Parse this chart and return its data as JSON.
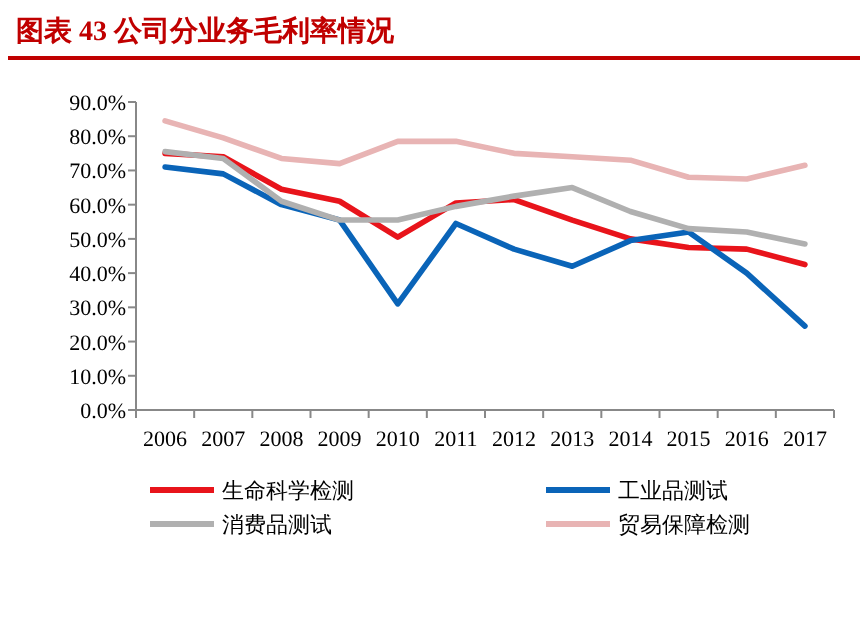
{
  "chart_data": {
    "type": "line",
    "title": "图表 43   公司分业务毛利率情况",
    "categories": [
      "2006",
      "2007",
      "2008",
      "2009",
      "2010",
      "2011",
      "2012",
      "2013",
      "2014",
      "2015",
      "2016",
      "2017"
    ],
    "series": [
      {
        "name": "生命科学检测",
        "color": "#e8141b",
        "values": [
          75,
          74,
          64.5,
          61,
          50.5,
          60.5,
          61.5,
          55.5,
          50,
          47.5,
          47,
          42.5
        ]
      },
      {
        "name": "工业品测试",
        "color": "#0a64b8",
        "values": [
          71,
          69,
          60,
          55.5,
          31,
          54.5,
          47,
          42,
          49.5,
          52,
          40,
          24.5
        ]
      },
      {
        "name": "消费品测试",
        "color": "#b0b0b0",
        "values": [
          75.5,
          73.5,
          61,
          55.5,
          55.5,
          59.5,
          62.5,
          65,
          58,
          53,
          52,
          48.5
        ]
      },
      {
        "name": "贸易保障检测",
        "color": "#e8b4b4",
        "values": [
          84.5,
          79.5,
          73.5,
          72,
          78.5,
          78.5,
          75,
          74,
          73,
          68,
          67.5,
          71.5
        ]
      }
    ],
    "ylim": [
      0,
      90
    ],
    "yticks": [
      {
        "value": 0,
        "label": "0.0%"
      },
      {
        "value": 10,
        "label": "10.0%"
      },
      {
        "value": 20,
        "label": "20.0%"
      },
      {
        "value": 30,
        "label": "30.0%"
      },
      {
        "value": 40,
        "label": "40.0%"
      },
      {
        "value": 50,
        "label": "50.0%"
      },
      {
        "value": 60,
        "label": "60.0%"
      },
      {
        "value": 70,
        "label": "70.0%"
      },
      {
        "value": 80,
        "label": "80.0%"
      },
      {
        "value": 90,
        "label": "90.0%"
      }
    ],
    "legend": "bottom",
    "marker": "none",
    "line_style": "solid",
    "grid": false
  }
}
